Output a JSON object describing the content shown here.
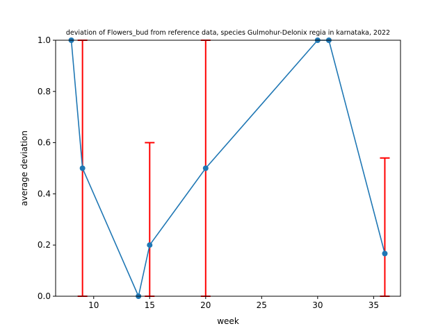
{
  "chart_data": {
    "type": "line",
    "title": "deviation of Flowers_bud from reference data, species Gulmohur-Delonix regia in karnataka, 2022",
    "xlabel": "week",
    "ylabel": "average deviation",
    "xlim": [
      6.6,
      37.4
    ],
    "ylim": [
      0,
      1
    ],
    "xticks": [
      10,
      15,
      20,
      25,
      30,
      35
    ],
    "yticks": [
      0.0,
      0.2,
      0.4,
      0.6,
      0.8,
      1.0
    ],
    "grid": false,
    "series": [
      {
        "name": "average deviation",
        "color": "#1f77b4",
        "x": [
          8,
          9,
          14,
          15,
          20,
          30,
          31,
          36
        ],
        "y": [
          1.0,
          0.5,
          0.0,
          0.2,
          0.5,
          1.0,
          1.0,
          0.1667
        ]
      }
    ],
    "error_bars": {
      "color": "#ff0000",
      "items": [
        {
          "x": 9,
          "low": 0.0,
          "high": 1.0
        },
        {
          "x": 15,
          "low": 0.0,
          "high": 0.6
        },
        {
          "x": 20,
          "low": 0.0,
          "high": 1.0
        },
        {
          "x": 36,
          "low": 0.0,
          "high": 0.54
        }
      ]
    }
  }
}
